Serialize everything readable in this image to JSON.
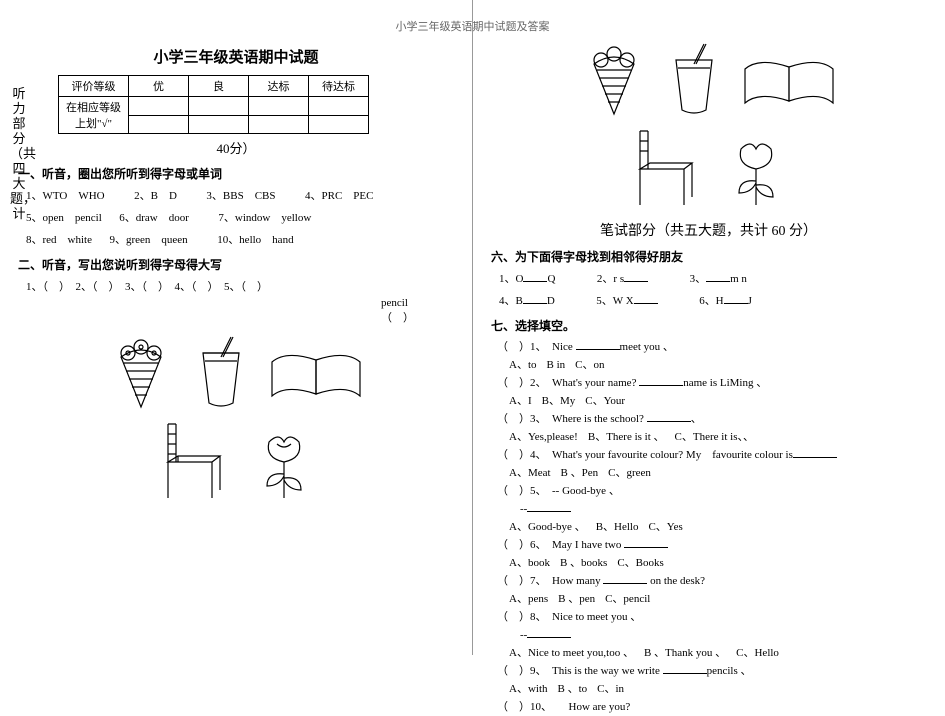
{
  "headerTop": "小学三年级英语期中试题及答案",
  "left": {
    "title": "小学三年级英语期中试题",
    "sidebar": "听力部分（共四大题，计",
    "gradeTable": {
      "headers": [
        "评价等级",
        "优",
        "良",
        "达标",
        "待达标"
      ],
      "rowLabel": "在相应等级上划\"√\""
    },
    "scoreLine": "40分）",
    "sec1": "一、听音，圈出您所听到得字母或单词",
    "sec1_items": [
      "1、WTO　WHO",
      "2、B　D",
      "3、BBS　CBS",
      "4、PRC　PEC",
      "5、open　pencil",
      "6、draw　door",
      "7、window　yellow",
      "8、red　white",
      "9、green　queen",
      "10、hello　hand"
    ],
    "sec2": "二、听音，写出您说听到得字母得大写",
    "sec2_line": "1、（　）　2、（　）　3、（　）　4、（　）　5、（　）",
    "pencil_label": "pencil",
    "pencil_paren": "（　）"
  },
  "right": {
    "writtenTitle": "笔试部分（共五大题，共计 60 分）",
    "sec6": "六、为下面得字母找到相邻得好朋友",
    "sec6_items": {
      "c1a": "1、O",
      "c1b": "Q",
      "c2a": "2、r",
      "c2b": "s",
      "c3a": "3、",
      "c3b": "m n",
      "c4a": "4、B",
      "c4b": "D",
      "c5a": "5、W X",
      "c5b": "",
      "c6a": "6、H",
      "c6b": "J"
    },
    "sec7": "七、选择填空。",
    "q": [
      {
        "n": "1",
        "stem": "Nice ",
        "tail": "meet you 、",
        "opts": [
          "A、to",
          "B in",
          "C、on"
        ]
      },
      {
        "n": "2",
        "stem": "What's your name? ",
        "tail": "name is LiMing 、",
        "opts": [
          "A、I",
          "B、My",
          "C、Your"
        ]
      },
      {
        "n": "3",
        "stem": "Where is the school? ",
        "tail": "、",
        "opts": [
          "A、Yes,please!",
          "B、There is it 、",
          "C、There it is、、"
        ]
      },
      {
        "n": "4",
        "stem": "What's your favourite colour? My　favourite colour is",
        "tail": "",
        "opts": [
          "A、Meat",
          "B 、Pen",
          "C、green"
        ]
      },
      {
        "n": "5",
        "stem": "-- Good-bye 、",
        "tail": "",
        "opts2": [
          "A、Good-bye 、",
          "B、Hello",
          "C、Yes"
        ]
      },
      {
        "n": "6",
        "stem": "May I have two ",
        "tail": "",
        "opts": [
          "A、book",
          "B 、books",
          "C、Books"
        ]
      },
      {
        "n": "7",
        "stem": "How many ",
        "tail": " on the desk?",
        "opts": [
          "A、pens",
          "B 、pen",
          "C、pencil"
        ]
      },
      {
        "n": "8",
        "stem": "Nice to meet you 、",
        "tail": "",
        "opts2": [
          "A、Nice to meet you,too 、",
          "B 、Thank you 、",
          "C、Hello"
        ]
      },
      {
        "n": "9",
        "stem": "This is the way we write ",
        "tail": "pencils 、",
        "opts": [
          "A、with",
          "B 、to",
          "C、in"
        ]
      },
      {
        "n": "10",
        "stem": "　How are you?",
        "tail": "",
        "opts": []
      }
    ]
  },
  "svg": {
    "stroke": "#000000",
    "fill": "none",
    "sw": "1.2"
  }
}
